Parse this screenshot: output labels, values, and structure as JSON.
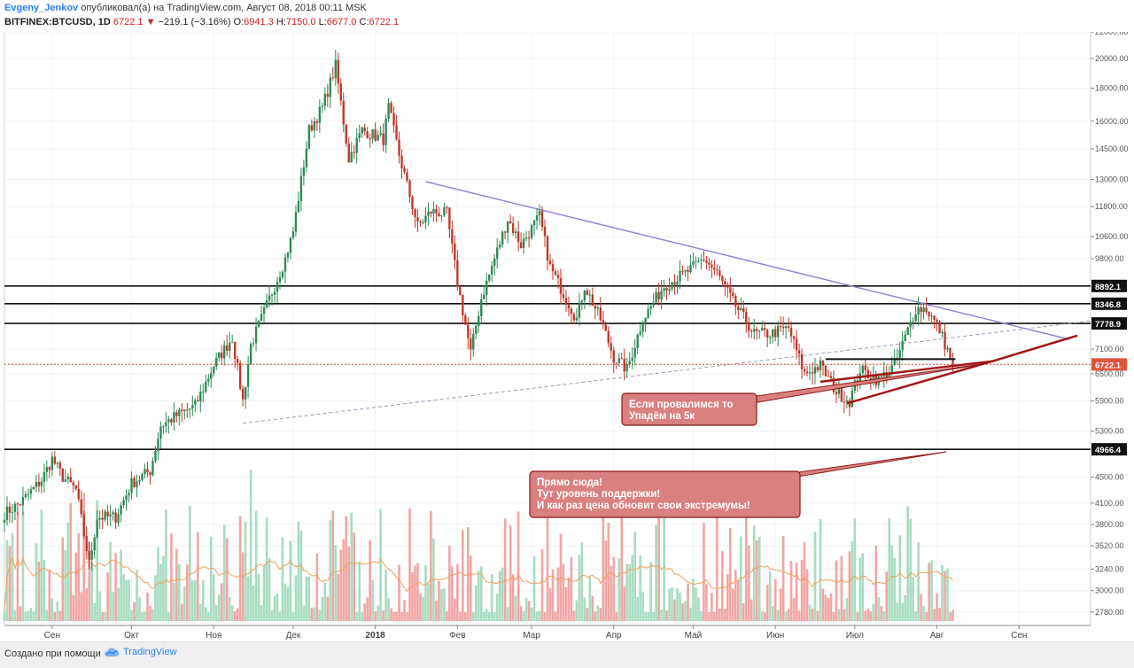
{
  "header": {
    "author": "Evgeny_Jenkov",
    "published_text": "опубликовал(а) на TradingView.com, Август 08, 2018 00:11 MSK",
    "symbol": "BITFINEX:BTCUSD, 1D",
    "last": "6722.1",
    "change": "−219.1 (−3.16%)",
    "o_label": "O:",
    "o": "6941.3",
    "h_label": "H:",
    "h": "7150.0",
    "l_label": "L:",
    "l": "6677.0",
    "c_label": "C:",
    "c": "6722.1"
  },
  "footer": {
    "made_with": "Создано при помощи",
    "brand": "TradingView"
  },
  "colors": {
    "up": "#2e8b57",
    "down": "#c0392b",
    "volume_up": "#a8dcc0",
    "volume_down": "#f2a5a5",
    "trend_purple": "#8d86d6",
    "annotation_fill": "#d98080",
    "annotation_stroke": "#8b1a1a",
    "arrow": "#a31515",
    "current_price": "#e0533d"
  },
  "chart_data": {
    "type": "candlestick",
    "x_months": [
      "Сен",
      "Окт",
      "Ноя",
      "Дек",
      "2018",
      "Фев",
      "Мар",
      "Апр",
      "Май",
      "Июн",
      "Июл",
      "Авг",
      "Сен"
    ],
    "y_ticks": [
      2780,
      3000,
      3240,
      3520,
      3800,
      4100,
      4500,
      4966.4,
      5300,
      5900,
      6500,
      6722.1,
      7100,
      7778.9,
      8346.8,
      8892.1,
      9800,
      10600,
      11800,
      13000,
      14500,
      16000,
      18000,
      20000,
      22000
    ],
    "y_tick_labels": [
      "2780.00",
      "3000.00",
      "3240.00",
      "3520.00",
      "3800.00",
      "4100.00",
      "4500.00",
      "4966.4",
      "5300.00",
      "5900.00",
      "6500.00",
      "6722.1",
      "7100.00",
      "7778.9",
      "8346.8",
      "8892.1",
      "9800.00",
      "10600.00",
      "11800.00",
      "13000.00",
      "14500.00",
      "16000.00",
      "18000.00",
      "20000.00",
      "22000.00"
    ],
    "x_range": [
      "2017-08-14",
      "2018-09-28"
    ],
    "y_log_scale": true,
    "y_range": [
      2650,
      22000
    ],
    "horizontal_levels": [
      8892.1,
      8346.8,
      7778.9,
      4966.4
    ],
    "current_price": 6722.1,
    "anchors": [
      [
        "2017-08-14",
        3950
      ],
      [
        "2017-08-20",
        4100
      ],
      [
        "2017-08-28",
        4450
      ],
      [
        "2017-09-01",
        4800
      ],
      [
        "2017-09-05",
        4500
      ],
      [
        "2017-09-10",
        4300
      ],
      [
        "2017-09-15",
        3300
      ],
      [
        "2017-09-18",
        3900
      ],
      [
        "2017-09-25",
        3900
      ],
      [
        "2017-10-01",
        4400
      ],
      [
        "2017-10-08",
        4600
      ],
      [
        "2017-10-12",
        5400
      ],
      [
        "2017-10-18",
        5600
      ],
      [
        "2017-10-25",
        5800
      ],
      [
        "2017-11-01",
        6700
      ],
      [
        "2017-11-08",
        7400
      ],
      [
        "2017-11-12",
        5900
      ],
      [
        "2017-11-15",
        7200
      ],
      [
        "2017-11-20",
        8100
      ],
      [
        "2017-11-28",
        9800
      ],
      [
        "2017-12-01",
        10800
      ],
      [
        "2017-12-07",
        15500
      ],
      [
        "2017-12-12",
        16800
      ],
      [
        "2017-12-17",
        19500
      ],
      [
        "2017-12-22",
        14000
      ],
      [
        "2017-12-27",
        15500
      ],
      [
        "2018-01-04",
        15000
      ],
      [
        "2018-01-06",
        16800
      ],
      [
        "2018-01-10",
        14200
      ],
      [
        "2018-01-17",
        11000
      ],
      [
        "2018-01-22",
        11600
      ],
      [
        "2018-01-28",
        11500
      ],
      [
        "2018-02-01",
        9000
      ],
      [
        "2018-02-06",
        7000
      ],
      [
        "2018-02-10",
        8500
      ],
      [
        "2018-02-20",
        11300
      ],
      [
        "2018-02-25",
        10300
      ],
      [
        "2018-03-04",
        11400
      ],
      [
        "2018-03-08",
        9500
      ],
      [
        "2018-03-18",
        7900
      ],
      [
        "2018-03-21",
        8900
      ],
      [
        "2018-03-27",
        7900
      ],
      [
        "2018-04-01",
        6900
      ],
      [
        "2018-04-06",
        6600
      ],
      [
        "2018-04-12",
        7900
      ],
      [
        "2018-04-20",
        8900
      ],
      [
        "2018-04-28",
        9300
      ],
      [
        "2018-05-05",
        9800
      ],
      [
        "2018-05-10",
        9300
      ],
      [
        "2018-05-16",
        8400
      ],
      [
        "2018-05-24",
        7500
      ],
      [
        "2018-05-30",
        7500
      ],
      [
        "2018-06-06",
        7650
      ],
      [
        "2018-06-12",
        6500
      ],
      [
        "2018-06-18",
        6700
      ],
      [
        "2018-06-24",
        6100
      ],
      [
        "2018-06-29",
        5900
      ],
      [
        "2018-07-03",
        6600
      ],
      [
        "2018-07-10",
        6350
      ],
      [
        "2018-07-16",
        6700
      ],
      [
        "2018-07-20",
        7400
      ],
      [
        "2018-07-24",
        8200
      ],
      [
        "2018-07-28",
        8200
      ],
      [
        "2018-08-02",
        7600
      ],
      [
        "2018-08-07",
        6722
      ]
    ],
    "trendlines": [
      {
        "kind": "resistance",
        "from": [
          "2018-01-20",
          12900
        ],
        "to": [
          "2018-09-20",
          7350
        ]
      },
      {
        "kind": "dashed-support",
        "from": [
          "2017-11-12",
          5450
        ],
        "to": [
          "2018-09-28",
          7850
        ]
      }
    ],
    "annotations": [
      {
        "text_lines": [
          "Если провалимся то",
          "Упадём на 5к"
        ]
      },
      {
        "text_lines": [
          "Прямо сюда!",
          "Тут уровень поддержки!",
          "И как раз цена обновит свои экстремумы!"
        ]
      }
    ]
  }
}
